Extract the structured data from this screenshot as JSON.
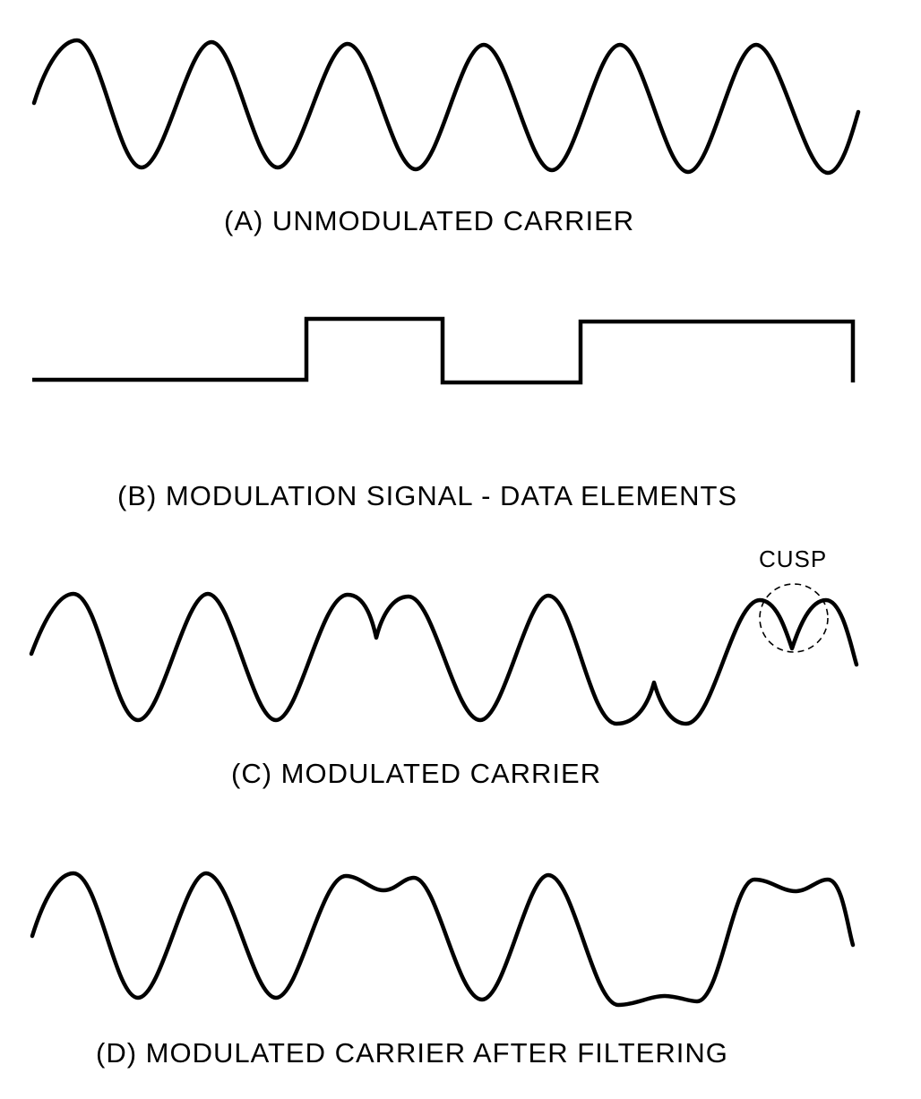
{
  "colors": {
    "ink": "#000000",
    "background": "#ffffff"
  },
  "panels": {
    "a": {
      "caption": "(A) UNMODULATED CARRIER"
    },
    "b": {
      "caption": "(B) MODULATION SIGNAL - DATA ELEMENTS"
    },
    "c": {
      "caption": "(C) MODULATED CARRIER",
      "annotation": "CUSP"
    },
    "d": {
      "caption": "(D) MODULATED CARRIER AFTER FILTERING"
    }
  },
  "modulation_signal": {
    "elements": [
      0,
      1,
      0,
      1
    ]
  }
}
